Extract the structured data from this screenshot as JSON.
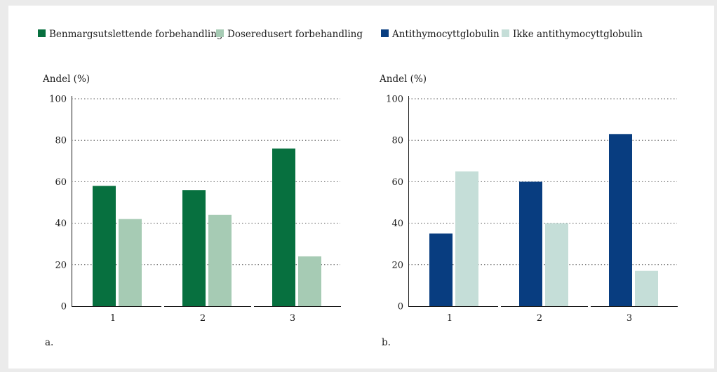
{
  "chart_data": [
    {
      "type": "bar",
      "panel_label": "a.",
      "ylabel": "Andel (%)",
      "ylim": [
        0,
        100
      ],
      "yticks": [
        0,
        20,
        40,
        60,
        80,
        100
      ],
      "categories": [
        "1",
        "2",
        "3"
      ],
      "series": [
        {
          "name": "Benmargsutslettende forbehandling",
          "color": "#07703f",
          "values": [
            58,
            56,
            76
          ]
        },
        {
          "name": "Doseredusert forbehandling",
          "color": "#a6cbb4",
          "values": [
            42,
            44,
            24
          ]
        }
      ],
      "grid": "horizontal dotted",
      "legend": "top"
    },
    {
      "type": "bar",
      "panel_label": "b.",
      "ylabel": "Andel (%)",
      "ylim": [
        0,
        100
      ],
      "yticks": [
        0,
        20,
        40,
        60,
        80,
        100
      ],
      "categories": [
        "1",
        "2",
        "3"
      ],
      "series": [
        {
          "name": "Antithymocyttglobulin",
          "color": "#083d80",
          "values": [
            35,
            60,
            83
          ]
        },
        {
          "name": "Ikke antithymocyttglobulin",
          "color": "#c5ded8",
          "values": [
            65,
            40,
            17
          ]
        }
      ],
      "grid": "horizontal dotted",
      "legend": "top"
    }
  ]
}
